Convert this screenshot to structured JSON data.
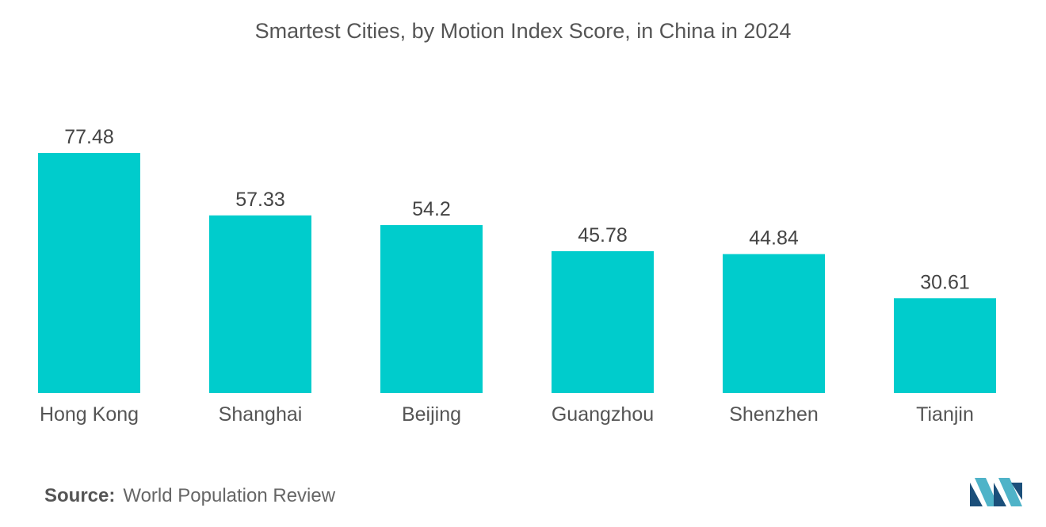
{
  "chart_data": {
    "type": "bar",
    "title": "Smartest Cities, by Motion Index Score, in China in 2024",
    "categories": [
      "Hong Kong",
      "Shanghai",
      "Beijing",
      "Guangzhou",
      "Shenzhen",
      "Tianjin"
    ],
    "values": [
      77.48,
      57.33,
      54.2,
      45.78,
      44.84,
      30.61
    ],
    "data_labels": [
      "77.48",
      "57.33",
      "54.2",
      "45.78",
      "44.84",
      "30.61"
    ],
    "xlabel": "",
    "ylabel": "",
    "ylim": [
      0,
      77.48
    ],
    "grid": false,
    "legend": "none",
    "bar_color": "#00CCCC"
  },
  "source": {
    "label": "Source:",
    "text": "World Population Review"
  },
  "logo": {
    "icon": "mordor-intelligence-logo-icon",
    "color_dark": "#1B4F7A",
    "color_light": "#4FB3C8"
  }
}
